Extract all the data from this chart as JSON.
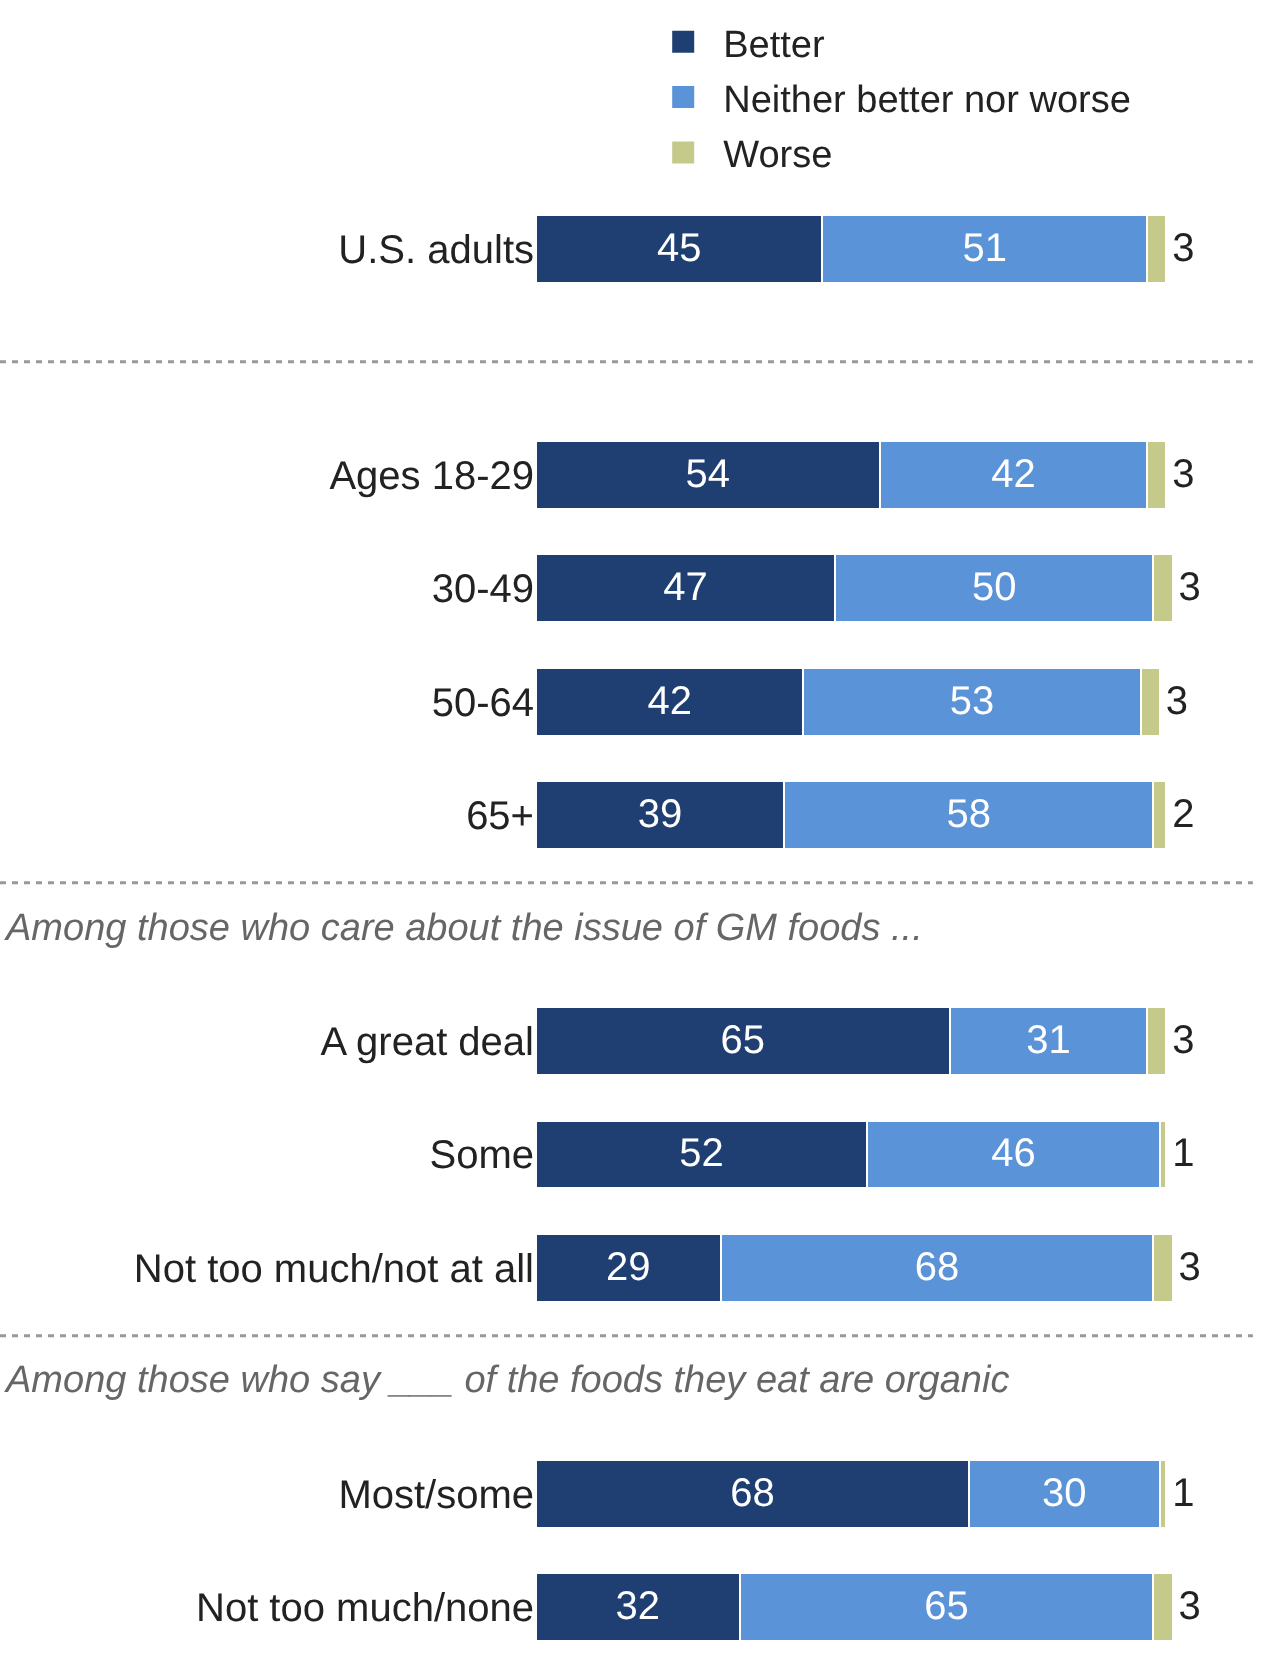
{
  "chart_data": {
    "type": "bar",
    "orientation": "horizontal",
    "stacked": true,
    "data_labels": true,
    "legend": "top",
    "categories": [
      "U.S. adults",
      null,
      "Ages 18-29",
      "30-49",
      "50-64",
      "65+",
      null,
      "A great deal",
      "Some",
      "Not too much/not at all",
      null,
      "Most/some",
      "Not too much/none"
    ],
    "series": [
      {
        "name": "Better",
        "color": "#1f3f73",
        "values": [
          45,
          null,
          54,
          47,
          42,
          39,
          null,
          65,
          52,
          29,
          null,
          68,
          32
        ]
      },
      {
        "name": "Neither better nor worse",
        "color": "#5b93d8",
        "values": [
          51,
          null,
          42,
          50,
          53,
          58,
          null,
          31,
          46,
          68,
          null,
          30,
          65
        ]
      },
      {
        "name": "Worse",
        "color": "#c5c98a",
        "values": [
          3,
          null,
          3,
          3,
          3,
          2,
          null,
          3,
          1,
          3,
          null,
          1,
          3
        ]
      }
    ],
    "annotations": [
      "Among those who care about the issue of GM foods ...",
      "Among those who say ___ of the foods they eat are organic"
    ]
  }
}
